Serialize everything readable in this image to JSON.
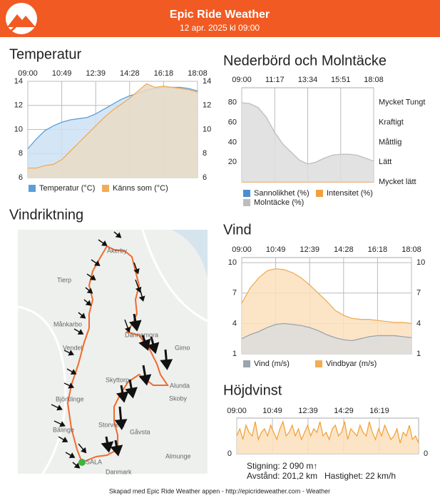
{
  "header": {
    "title": "Epic Ride Weather",
    "subtitle": "12 apr. 2025 kl 09:00"
  },
  "chart_data": [
    {
      "type": "area",
      "title": "Temperatur",
      "xticks": [
        "09:00",
        "10:49",
        "12:39",
        "14:28",
        "16:18",
        "18:08"
      ],
      "ylim": [
        6,
        14
      ],
      "yticks": [
        6,
        8,
        10,
        12,
        14
      ],
      "y2lim": [
        6,
        14
      ],
      "y2ticks": [
        6,
        8,
        10,
        12,
        14
      ],
      "grid": true,
      "series": [
        {
          "name": "Temperatur (°C)",
          "color": "#5b9fd8",
          "fill": "#cde2f4",
          "values": [
            8.4,
            9.2,
            9.9,
            10.3,
            10.6,
            10.8,
            10.9,
            11.0,
            11.3,
            11.7,
            12.1,
            12.5,
            12.8,
            13.0,
            13.3,
            13.4,
            13.5,
            13.5,
            13.5,
            13.4,
            13.2
          ]
        },
        {
          "name": "Känns som (°C)",
          "color": "#f2ac55",
          "fill": "#e9dac6",
          "values": [
            6.8,
            6.8,
            7.0,
            7.1,
            7.5,
            8.2,
            8.9,
            9.6,
            10.3,
            11.0,
            11.6,
            12.1,
            12.6,
            13.2,
            13.8,
            13.5,
            13.6,
            13.5,
            13.4,
            13.3,
            13.1
          ]
        }
      ]
    },
    {
      "type": "area",
      "title": "Nederbörd och Molntäcke",
      "xticks": [
        "09:00",
        "11:17",
        "13:34",
        "15:51",
        "18:08"
      ],
      "ylim": [
        0,
        95
      ],
      "yticks": [
        20,
        40,
        60,
        80
      ],
      "y2lim": [
        0,
        95
      ],
      "y2ticks": [
        {
          "value": 0,
          "label": "Mycket lätt"
        },
        {
          "value": 20,
          "label": "Lätt"
        },
        {
          "value": 40,
          "label": "Måttlig"
        },
        {
          "value": 60,
          "label": "Kraftigt"
        },
        {
          "value": 80,
          "label": "Mycket Tungt"
        }
      ],
      "grid": false,
      "series": [
        {
          "name": "Sannolikhet (%)",
          "color": "#4a90d0",
          "fill": "none",
          "values": [
            0,
            0,
            0,
            0,
            0,
            0,
            0,
            0,
            0,
            0,
            0,
            0,
            0,
            0,
            0,
            0,
            0
          ]
        },
        {
          "name": "Intensitet (%)",
          "color": "#f2a03c",
          "fill": "none",
          "values": [
            0,
            0,
            0,
            0,
            0,
            0,
            0,
            0,
            0,
            0,
            0,
            0,
            0,
            0,
            0,
            0,
            0
          ]
        },
        {
          "name": "Molntäcke (%)",
          "color": "#bdbdbd",
          "fill": "#dddddd",
          "values": [
            80,
            79,
            75,
            65,
            50,
            38,
            30,
            22,
            18,
            20,
            24,
            27,
            28,
            28,
            27,
            24,
            21
          ]
        }
      ]
    },
    {
      "type": "area",
      "title": "Vind",
      "xticks": [
        "09:00",
        "10:49",
        "12:39",
        "14:28",
        "16:18",
        "18:08"
      ],
      "ylim": [
        1,
        10.5
      ],
      "yticks": [
        1,
        4,
        7,
        10
      ],
      "y2lim": [
        1,
        10.5
      ],
      "y2ticks": [
        1,
        4,
        7,
        10
      ],
      "grid": true,
      "series": [
        {
          "name": "Vindbyar (m/s)",
          "color": "#f2ac55",
          "fill": "#fbe1bd",
          "values": [
            6.0,
            7.5,
            8.5,
            9.2,
            9.4,
            9.3,
            9.0,
            8.5,
            7.8,
            7.0,
            6.2,
            5.3,
            4.8,
            4.5,
            4.4,
            4.4,
            4.3,
            4.2,
            4.1,
            4.1,
            4.0
          ]
        },
        {
          "name": "Vind (m/s)",
          "color": "#9aa5ad",
          "fill": "#dcdcdc",
          "values": [
            2.5,
            2.9,
            3.2,
            3.6,
            3.9,
            4.0,
            3.9,
            3.8,
            3.6,
            3.3,
            2.9,
            2.6,
            2.4,
            2.3,
            2.5,
            2.7,
            2.8,
            2.8,
            2.8,
            2.7,
            2.6
          ]
        }
      ]
    },
    {
      "type": "area",
      "title": "Höjdvinst",
      "xticks": [
        "09:00",
        "10:49",
        "12:39",
        "14:29",
        "16:19"
      ],
      "ylim": [
        0,
        10
      ],
      "yticks": [
        0
      ],
      "y2lim": [
        0,
        10
      ],
      "y2ticks": [
        0
      ],
      "grid": false,
      "series": [
        {
          "name": "Höjd",
          "color": "#f4a23a",
          "fill": "#fbe1bd",
          "values": [
            5,
            7,
            4,
            8,
            6,
            5,
            9,
            4,
            6,
            7,
            5,
            8,
            6,
            4,
            7,
            9,
            5,
            6,
            8,
            5,
            7,
            4,
            6,
            8,
            5,
            7,
            6,
            9,
            5,
            6,
            4,
            7,
            8,
            5,
            6,
            9,
            4,
            7,
            6,
            5,
            8,
            6,
            5,
            9,
            6,
            4,
            7,
            5,
            8,
            6,
            4,
            5,
            7,
            3,
            6,
            5,
            8,
            4,
            5,
            3
          ]
        }
      ],
      "annotations": [
        "Stigning: 2 090 m↑",
        "Avstånd: 201,2 km",
        "Hastighet: 22 km/h"
      ]
    }
  ],
  "map": {
    "title": "Vindriktning",
    "places": [
      "Åkerby",
      "Tierp",
      "Månkarbo",
      "Vendel",
      "Dannemora",
      "Gimo",
      "Skyttorp",
      "Alunda",
      "Björklinge",
      "Skoby",
      "Storvreta",
      "Gåvsta",
      "Bälinge",
      "Almunge",
      "SALA",
      "Danmark"
    ]
  },
  "footer": "Skapad med Epic Ride Weather appen - http://epicrideweather.com -  Weather"
}
